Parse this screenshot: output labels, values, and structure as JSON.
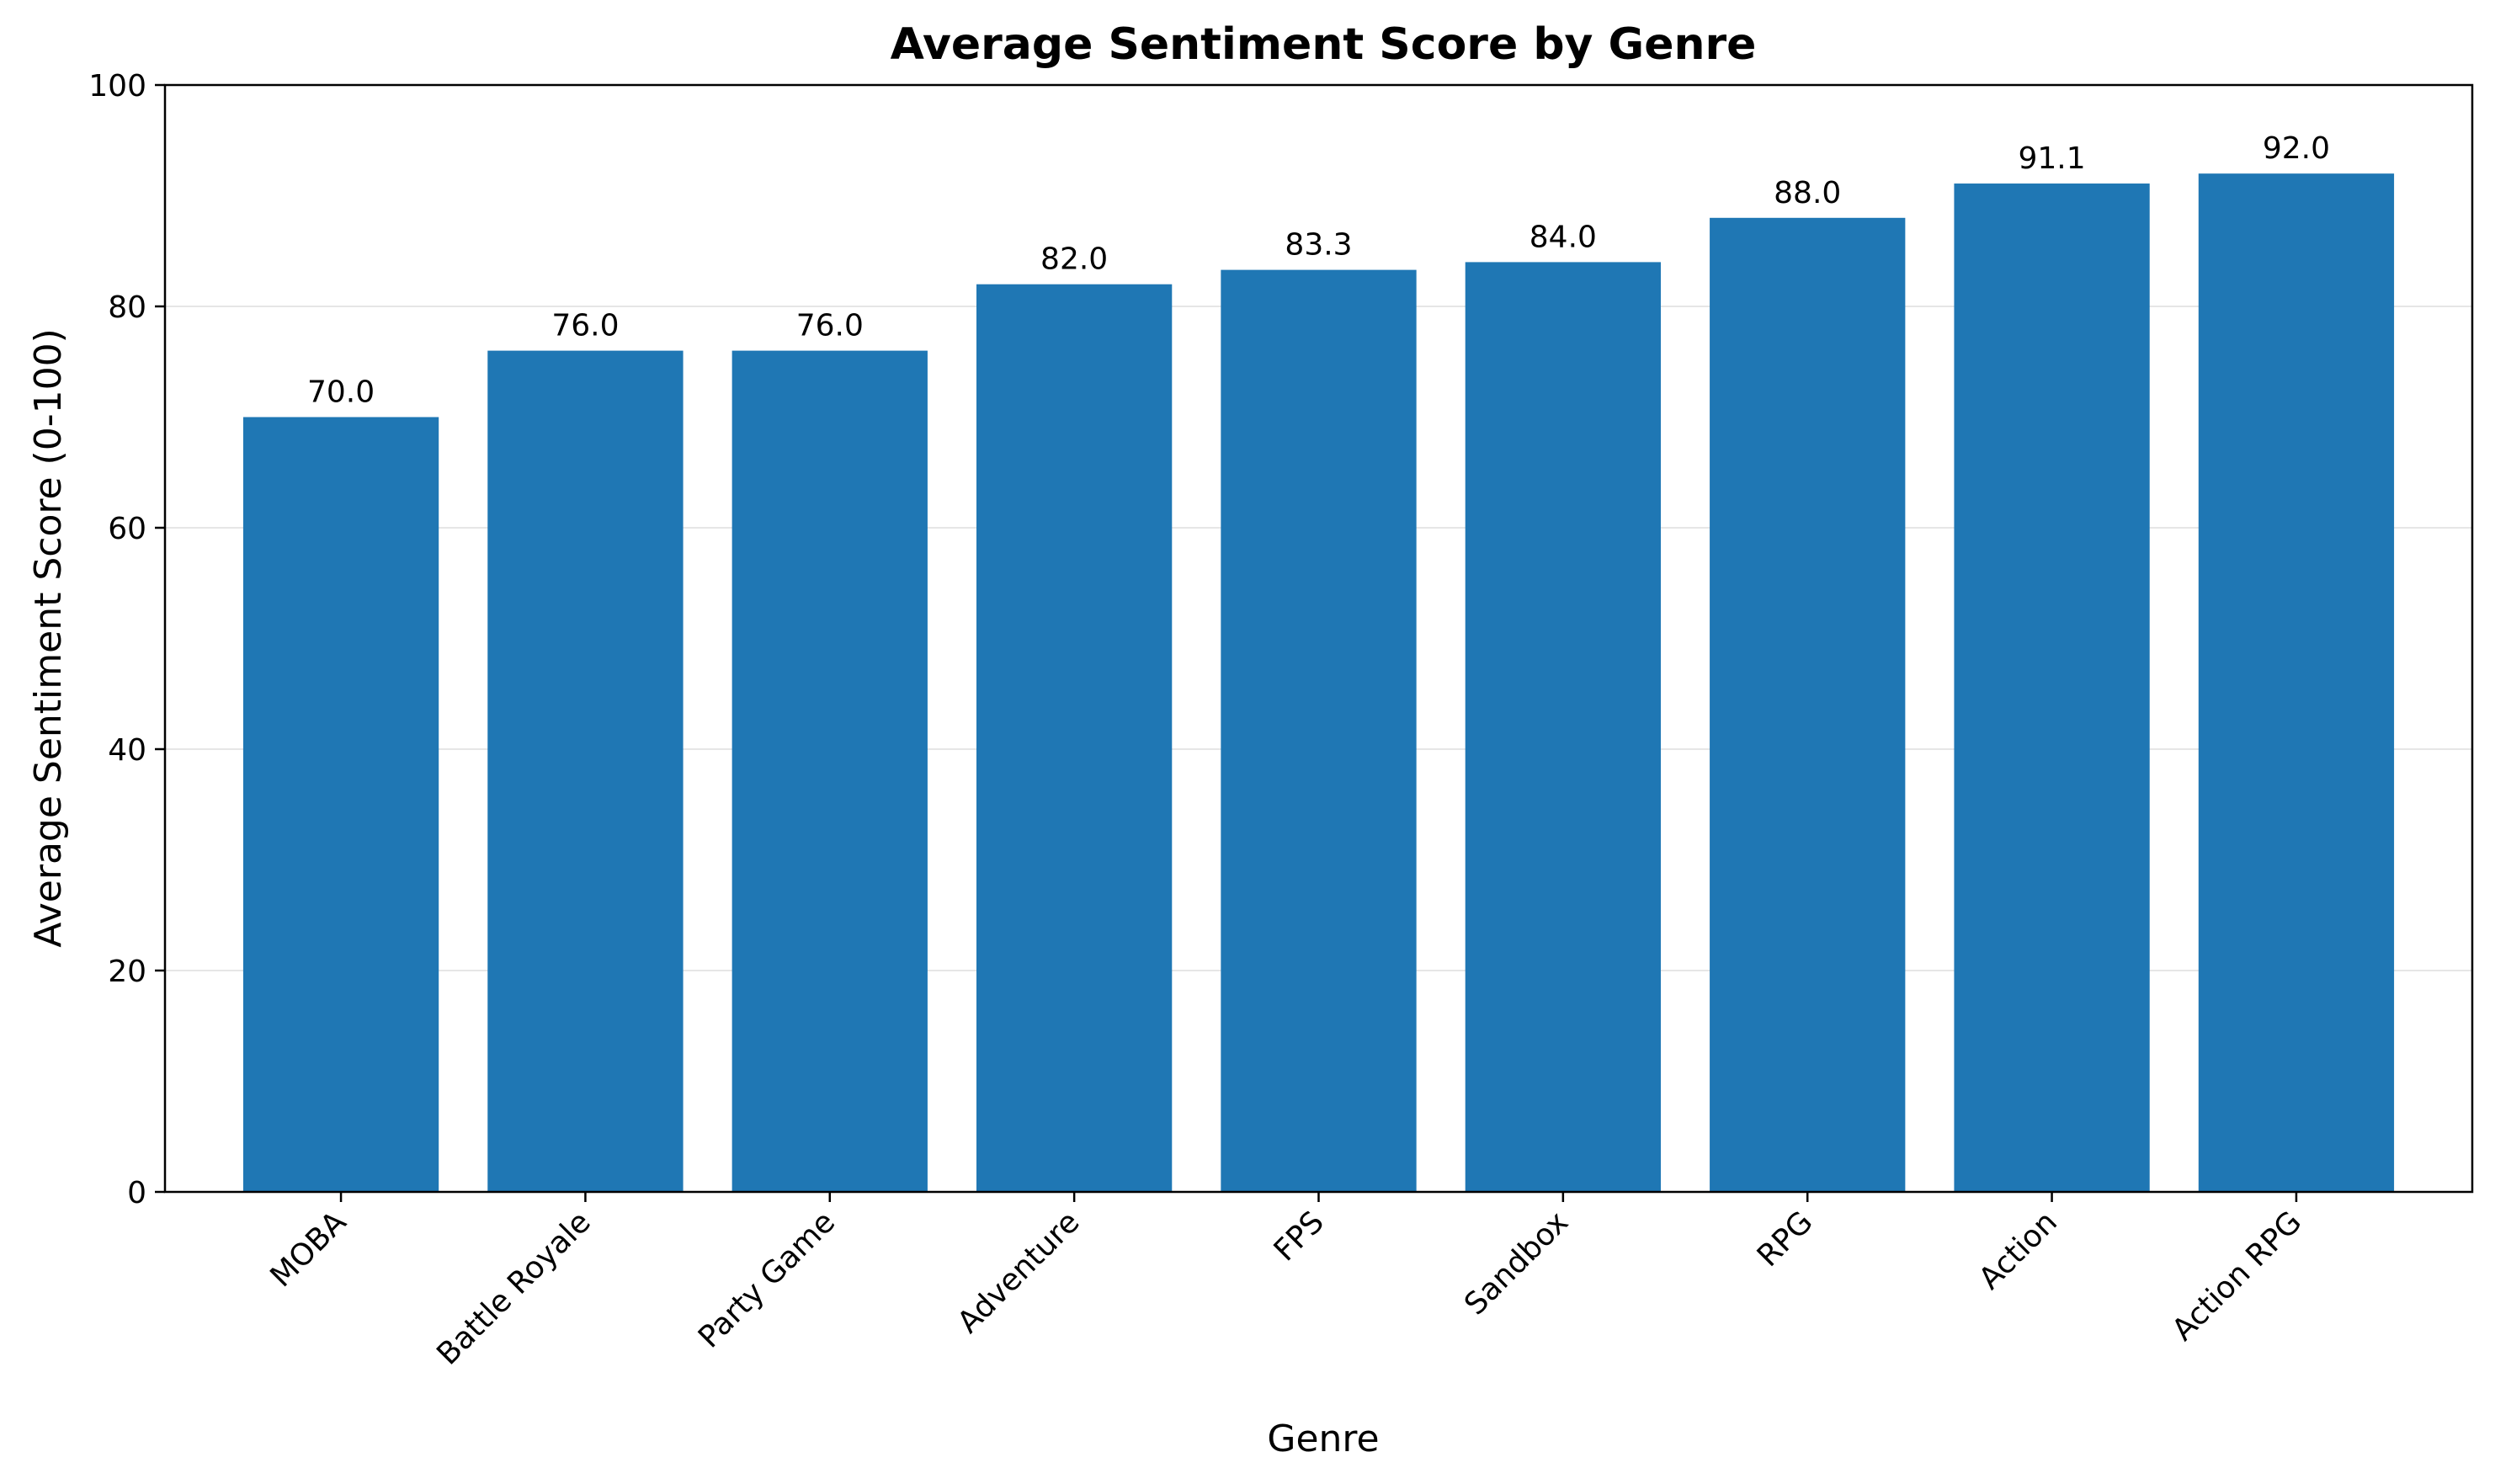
{
  "chart_data": {
    "type": "bar",
    "title": "Average Sentiment Score by Genre",
    "xlabel": "Genre",
    "ylabel": "Average Sentiment Score (0-100)",
    "categories": [
      "MOBA",
      "Battle Royale",
      "Party Game",
      "Adventure",
      "FPS",
      "Sandbox",
      "RPG",
      "Action",
      "Action RPG"
    ],
    "values": [
      70.0,
      76.0,
      76.0,
      82.0,
      83.3,
      84.0,
      88.0,
      91.1,
      92.0
    ],
    "value_labels": [
      "70.0",
      "76.0",
      "76.0",
      "82.0",
      "83.3",
      "84.0",
      "88.0",
      "91.1",
      "92.0"
    ],
    "ylim": [
      0,
      100
    ],
    "yticks": [
      0,
      20,
      40,
      60,
      80,
      100
    ],
    "ytick_labels": [
      "0",
      "20",
      "40",
      "60",
      "80",
      "100"
    ],
    "grid": "y",
    "bar_color": "#1f77b4",
    "xtick_rotation": "45"
  }
}
